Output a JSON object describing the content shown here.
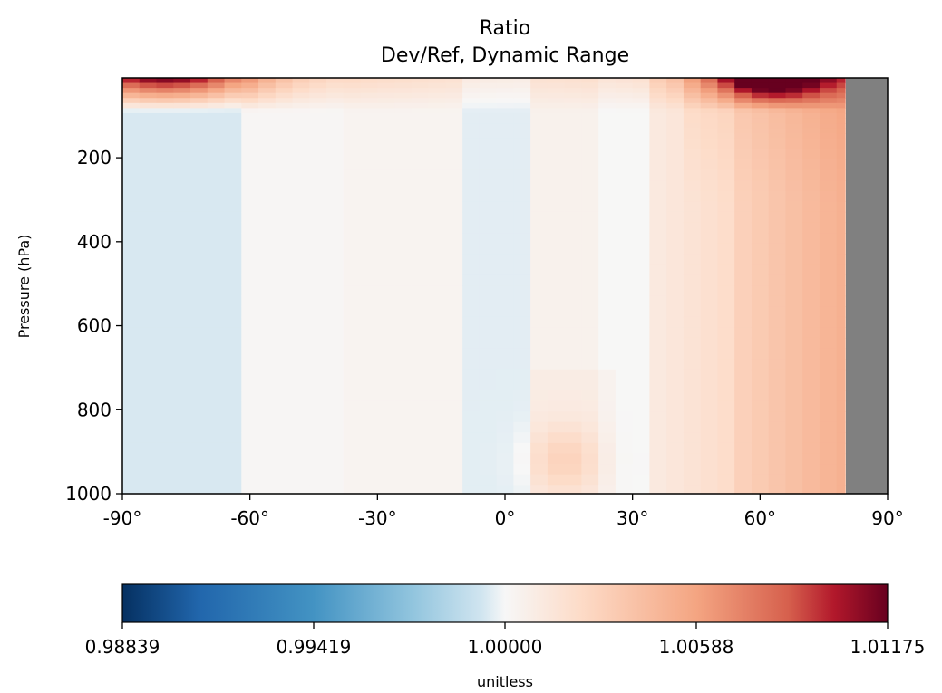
{
  "chart_data": {
    "type": "heatmap",
    "title": "Ratio",
    "subtitle": "Dev/Ref, Dynamic Range",
    "xlabel": "",
    "ylabel": "Pressure (hPa)",
    "xlim": [
      -90,
      90
    ],
    "ylim": [
      1000,
      10
    ],
    "y_inverted": true,
    "x_ticks": [
      -90,
      -60,
      -30,
      0,
      30,
      60,
      90
    ],
    "x_tick_labels": [
      "-90°",
      "-60°",
      "-30°",
      "0°",
      "30°",
      "60°",
      "90°"
    ],
    "y_ticks": [
      200,
      400,
      600,
      800,
      1000
    ],
    "y_tick_labels": [
      "200",
      "400",
      "600",
      "800",
      "1000"
    ],
    "no_data_region": {
      "lat_min": 80,
      "lat_max": 90,
      "color": "#808080"
    },
    "colormap": "RdBu_r",
    "colorbar": {
      "min": 0.98839,
      "center": 1.0,
      "max": 1.01175,
      "tick_labels": [
        "0.98839",
        "0.99419",
        "1.00000",
        "1.00588",
        "1.01175"
      ],
      "tick_values": [
        0.98839,
        0.99419,
        1.0,
        1.00588,
        1.01175
      ],
      "label": "unitless"
    },
    "colors": {
      "darkest_blue": "#053061",
      "mid_blue": "#2166ac",
      "light_blue": "#92c5de",
      "neutral": "#f7f7f7",
      "light_red": "#f4a582",
      "mid_red": "#b2182b",
      "darkest_red": "#67001f"
    }
  }
}
